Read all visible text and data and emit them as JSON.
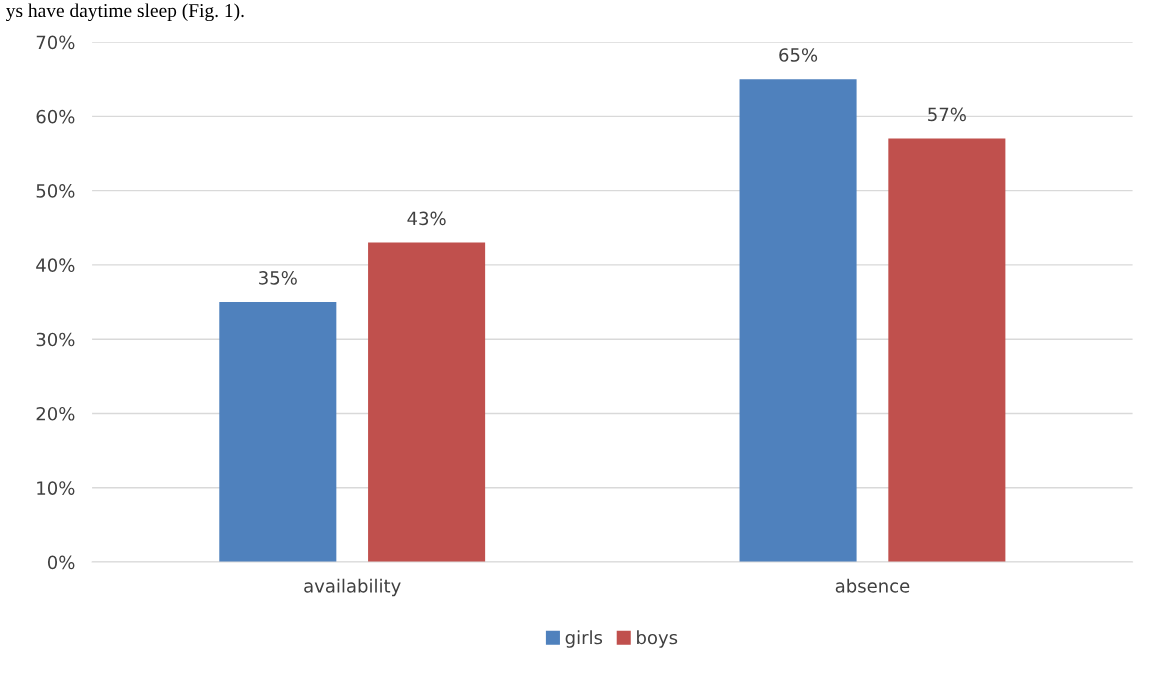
{
  "chart_data": {
    "type": "bar",
    "categories": [
      "availability",
      "absence"
    ],
    "series": [
      {
        "name": "girls",
        "color": "#4f81bd",
        "values": [
          35,
          65
        ],
        "value_labels": [
          "35%",
          "65%"
        ]
      },
      {
        "name": "boys",
        "color": "#c0504d",
        "values": [
          43,
          57
        ],
        "value_labels": [
          "43%",
          "57%"
        ]
      }
    ],
    "ylim": [
      0,
      70
    ],
    "yticks": [
      {
        "value": 0,
        "label": "0%"
      },
      {
        "value": 10,
        "label": "10%"
      },
      {
        "value": 20,
        "label": "20%"
      },
      {
        "value": 30,
        "label": "30%"
      },
      {
        "value": 40,
        "label": "40%"
      },
      {
        "value": 50,
        "label": "50%"
      },
      {
        "value": 60,
        "label": "60%"
      },
      {
        "value": 70,
        "label": "70%"
      }
    ],
    "grid": "y",
    "legend": "bottom",
    "annotations": [
      "ys have daytime sleep (Fig. 1)."
    ]
  }
}
